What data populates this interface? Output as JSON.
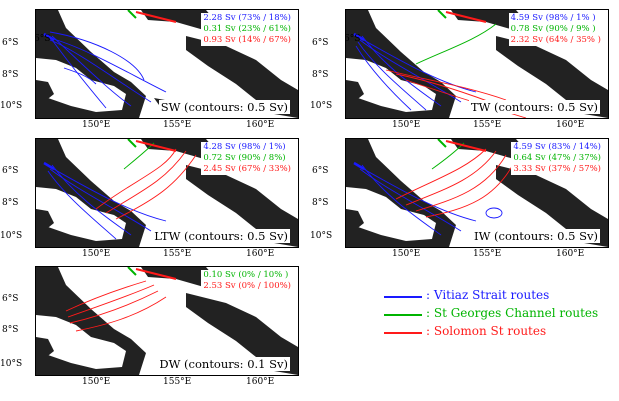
{
  "colors": {
    "vitiaz": "#1a1aff",
    "stgeorges": "#00b400",
    "solomon": "#ff1a1a"
  },
  "panels": [
    {
      "caption": "SW (contours: 0.5 Sv)",
      "stats": [
        "2.28 Sv (73% / 18%)",
        "0.31 Sv (23% / 61%)",
        "0.93 Sv (14% / 67%)"
      ]
    },
    {
      "caption": "TW (contours: 0.5 Sv)",
      "stats": [
        "4.59 Sv (98% / 1% )",
        "0.78 Sv (90% / 9% )",
        "2.32 Sv (64% / 35% )"
      ]
    },
    {
      "caption": "LTW (contours: 0.5 Sv)",
      "stats": [
        "4.28 Sv (98% / 1%)",
        "0.72 Sv (90% / 8%)",
        "2.45 Sv (67% / 33%)"
      ]
    },
    {
      "caption": "IW (contours: 0.5 Sv)",
      "stats": [
        "4.59 Sv (83% / 14%)",
        "0.64 Sv (47% / 37%)",
        "3.33 Sv (37% / 57%)"
      ]
    },
    {
      "caption": "DW (contours: 0.1 Sv)",
      "stats": [
        "0.10 Sv (0% / 10% )",
        "2.53 Sv (0% / 100%)"
      ]
    }
  ],
  "axes": {
    "lat": [
      "6°S",
      "8°S",
      "10°S"
    ],
    "lon": [
      "150°E",
      "155°E",
      "160°E"
    ]
  },
  "legend": [
    ": Vitiaz Strait routes",
    ": St Georges Channel routes",
    ": Solomon St routes"
  ]
}
